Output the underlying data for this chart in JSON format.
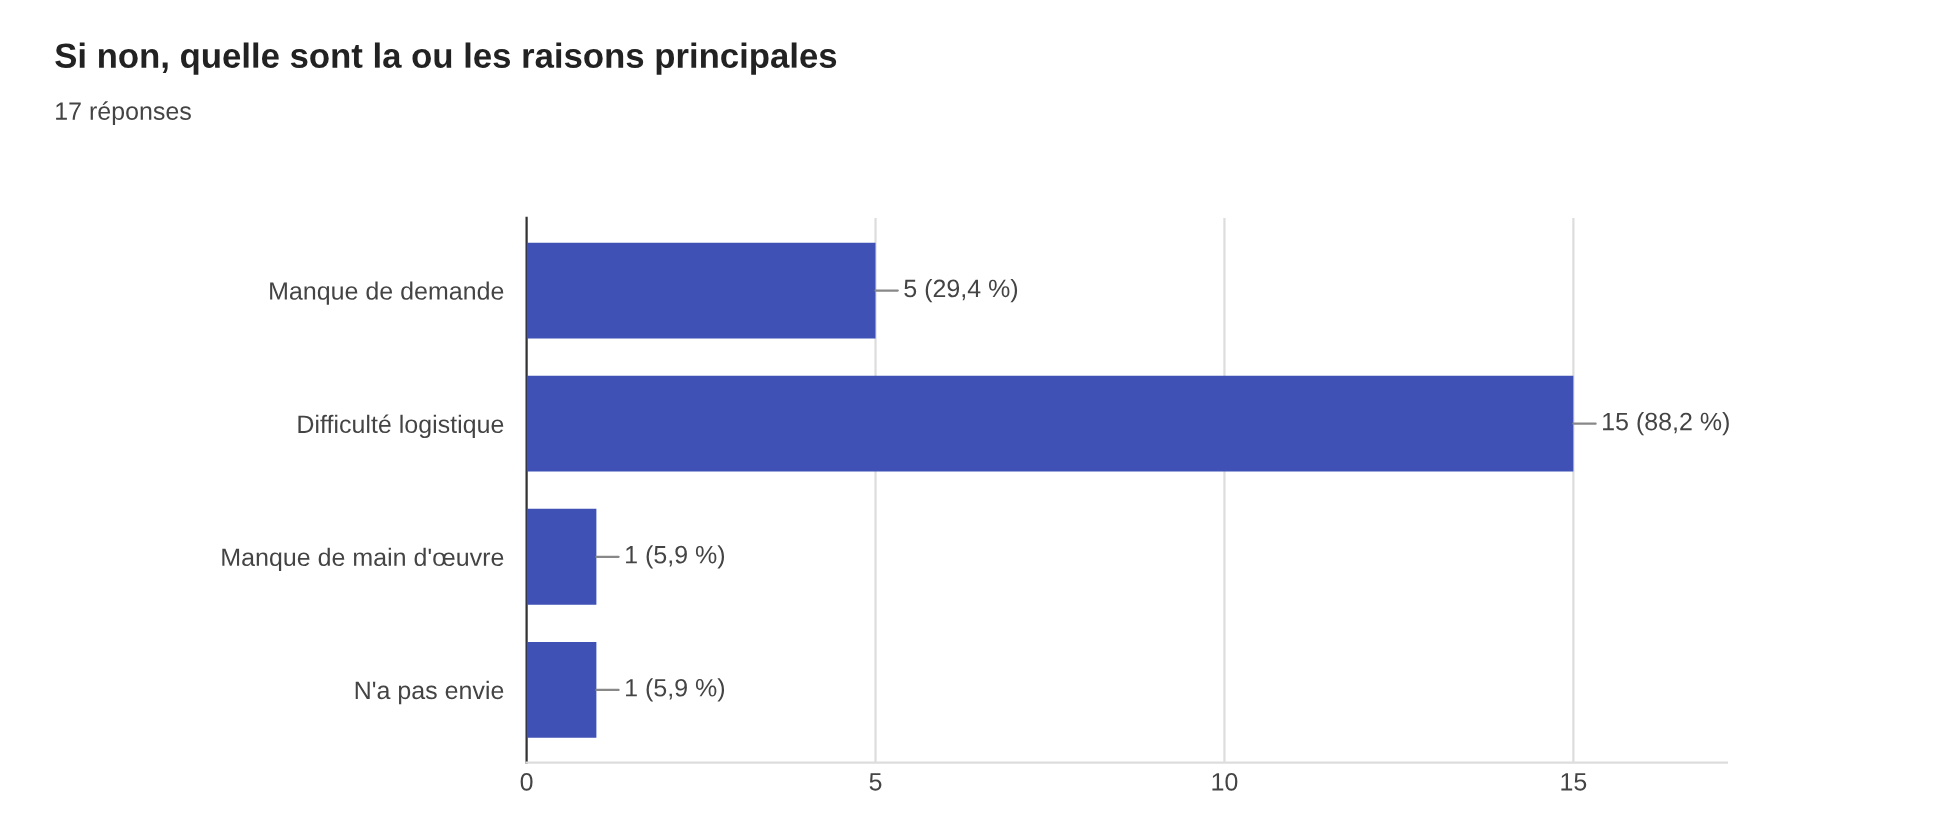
{
  "chart_data": {
    "type": "bar",
    "orientation": "horizontal",
    "title": "Si non, quelle sont la ou les raisons principales",
    "subtitle": "17 réponses",
    "categories": [
      "Manque de demande",
      "Difficulté logistique",
      "Manque de main d'œuvre",
      "N'a pas envie"
    ],
    "values": [
      5,
      15,
      1,
      1
    ],
    "color": "#3f51b5",
    "value_labels": [
      "5 (29,4 %)",
      "15 (88,2 %)",
      "1 (5,9 %)",
      "1 (5,9 %)"
    ],
    "xlim": [
      0,
      17.2
    ],
    "xticks": [
      0,
      5,
      10,
      15
    ],
    "grid": "x"
  }
}
